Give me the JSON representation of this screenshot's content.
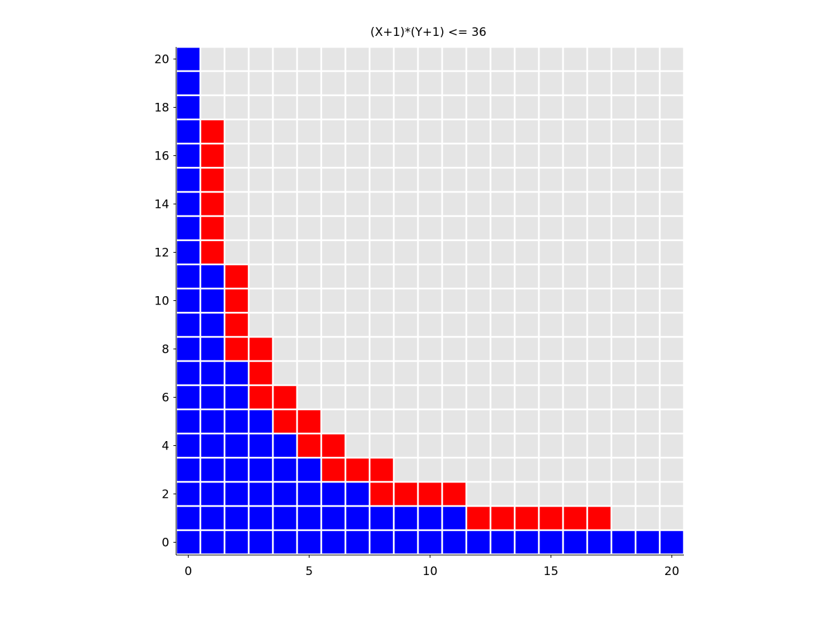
{
  "chart_data": {
    "type": "heatmap",
    "title": "(X+1)*(Y+1) <= 36",
    "xlabel": "",
    "ylabel": "",
    "x_range": [
      0,
      20
    ],
    "y_range": [
      0,
      20
    ],
    "x_ticks": [
      "0",
      "5",
      "10",
      "15",
      "20"
    ],
    "y_ticks": [
      "0",
      "2",
      "4",
      "6",
      "8",
      "10",
      "12",
      "14",
      "16",
      "18",
      "20"
    ],
    "grid": false,
    "colors": {
      "blue": "#0000ff",
      "red": "#ff0000",
      "gray": "#e5e5e5"
    },
    "blue_max_x_by_y": [
      20,
      11,
      7,
      5,
      4,
      3,
      2,
      2,
      1,
      1,
      1,
      1,
      0,
      0,
      0,
      0,
      0,
      0,
      0,
      0,
      0
    ],
    "red_max_x_by_y": [
      -1,
      17,
      11,
      8,
      6,
      5,
      4,
      3,
      3,
      2,
      2,
      2,
      1,
      1,
      1,
      1,
      1,
      1,
      0,
      0,
      0
    ]
  }
}
